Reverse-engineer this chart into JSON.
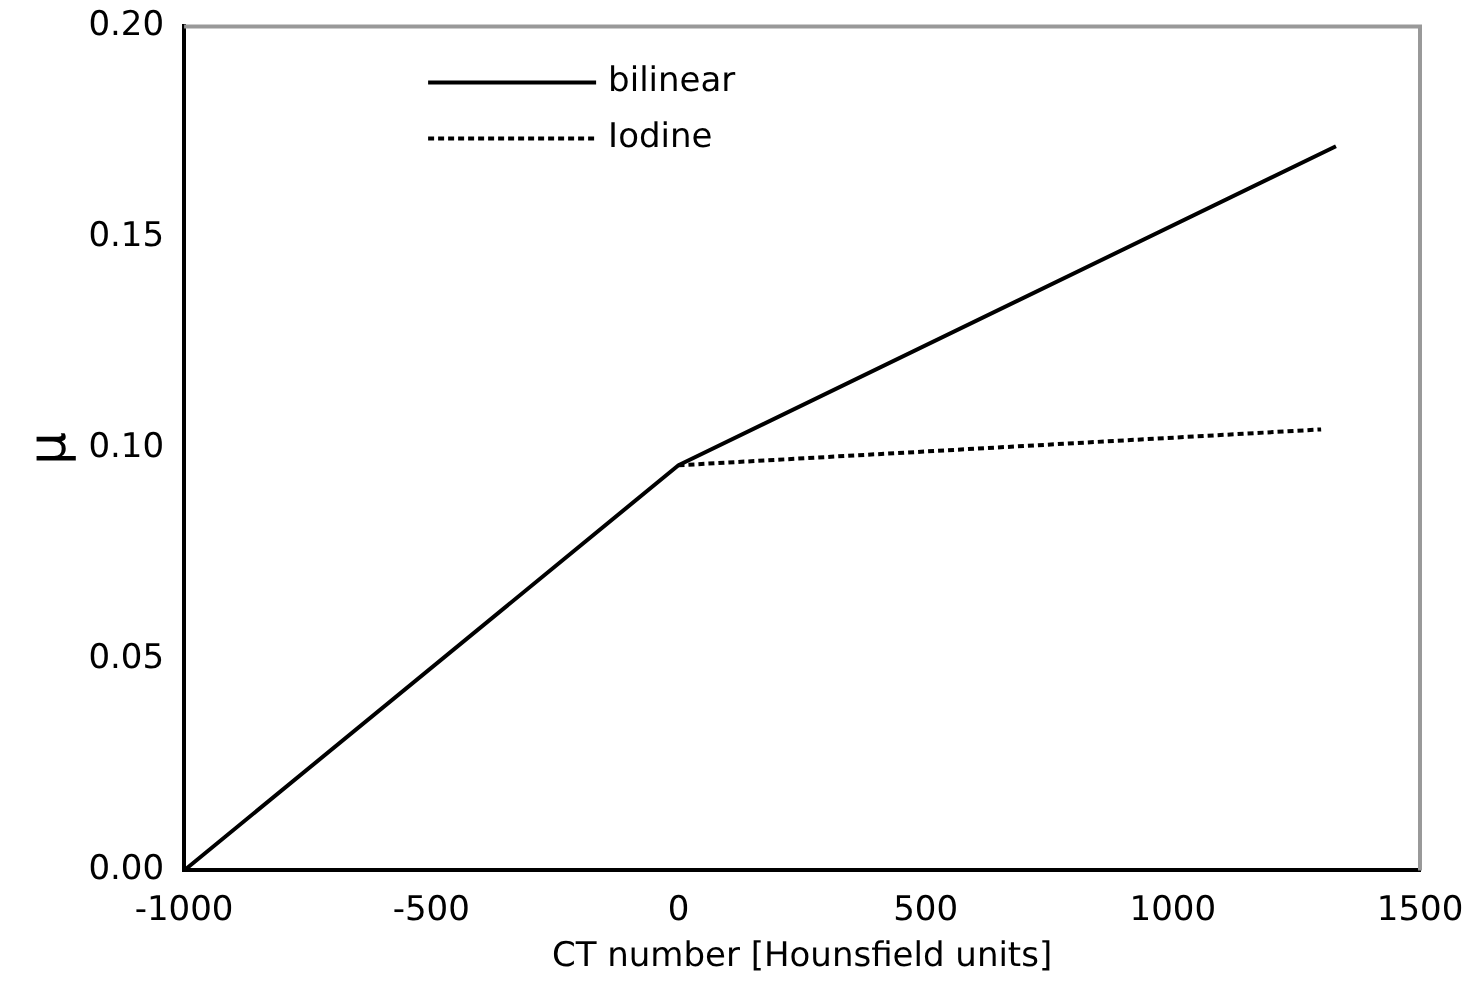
{
  "chart_data": {
    "type": "line",
    "xlabel": "CT number [Hounsfield units]",
    "ylabel": "μ",
    "xlim": [
      -1000,
      1500
    ],
    "xticks": [
      -1000,
      -500,
      0,
      500,
      1000,
      1500
    ],
    "ylim": [
      0,
      0.2
    ],
    "yticks": [
      {
        "value": 0,
        "label": "0.00"
      },
      {
        "value": 0.05,
        "label": "0.05"
      },
      {
        "value": 0.1,
        "label": "0.10"
      },
      {
        "value": 0.15,
        "label": "0.15"
      },
      {
        "value": 0.2,
        "label": "0.20"
      }
    ],
    "grid": false,
    "legend": "top left",
    "marker": "none",
    "series": [
      {
        "name": "bilinear",
        "color": "#000000",
        "line_style": "solid",
        "x": [
          -1000,
          0,
          1330
        ],
        "values": [
          0,
          0.096,
          0.1716
        ]
      },
      {
        "name": "Iodine",
        "color": "#000000",
        "line_style": "dotted",
        "x": [
          0,
          1300
        ],
        "values": [
          0.096,
          0.1045
        ]
      }
    ]
  }
}
